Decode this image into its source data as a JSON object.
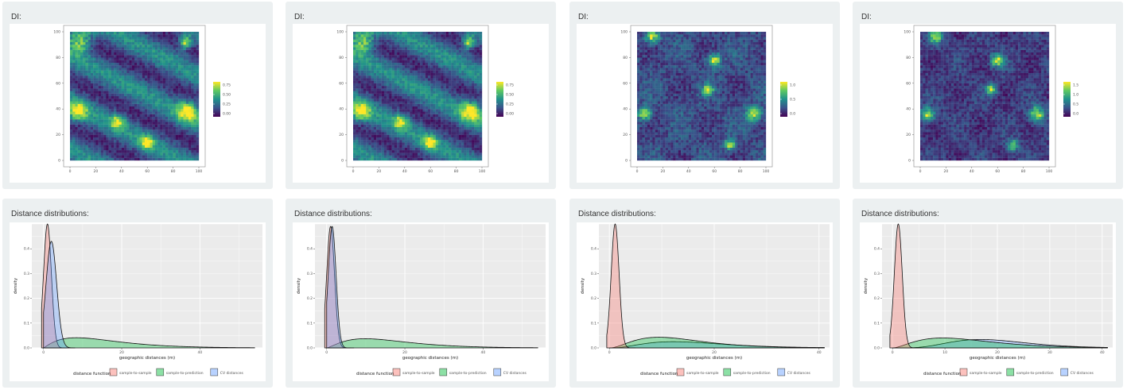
{
  "colors": {
    "panel_bg": "#ecf0f1",
    "sample_to_sample": "#f8766d",
    "sample_to_prediction": "#00ba38",
    "cv_distances": "#619cff",
    "viridis": [
      "#440154",
      "#3b528b",
      "#21918c",
      "#5ec962",
      "#fde725"
    ]
  },
  "di_panels": [
    {
      "title": "DI:",
      "legend_ticks": [
        "0.75",
        "0.50",
        "0.25",
        "0.00"
      ],
      "chart_data": {
        "type": "heatmap",
        "xlim": [
          0,
          100
        ],
        "ylim": [
          0,
          100
        ],
        "x_ticks": [
          "0",
          "20",
          "40",
          "60",
          "80",
          "100"
        ],
        "y_ticks": [
          "0",
          "20",
          "40",
          "60",
          "80",
          "100"
        ],
        "legend_range": [
          0,
          0.9
        ],
        "pattern": "diagonal-bands"
      }
    },
    {
      "title": "DI:",
      "legend_ticks": [
        "0.75",
        "0.50",
        "0.25",
        "0.00"
      ],
      "chart_data": {
        "type": "heatmap",
        "xlim": [
          0,
          100
        ],
        "ylim": [
          0,
          100
        ],
        "x_ticks": [
          "0",
          "20",
          "40",
          "60",
          "80",
          "100"
        ],
        "y_ticks": [
          "0",
          "20",
          "40",
          "60",
          "80",
          "100"
        ],
        "legend_range": [
          0,
          0.9
        ],
        "pattern": "diagonal-bands"
      }
    },
    {
      "title": "DI:",
      "legend_ticks": [
        "1.0",
        "0.5",
        "0.0"
      ],
      "chart_data": {
        "type": "heatmap",
        "xlim": [
          0,
          100
        ],
        "ylim": [
          0,
          100
        ],
        "x_ticks": [
          "0",
          "20",
          "40",
          "60",
          "80",
          "100"
        ],
        "y_ticks": [
          "0",
          "20",
          "40",
          "60",
          "80",
          "100"
        ],
        "legend_range": [
          0,
          1.3
        ],
        "pattern": "noise"
      }
    },
    {
      "title": "DI:",
      "legend_ticks": [
        "1.5",
        "1.0",
        "0.5",
        "0.0"
      ],
      "chart_data": {
        "type": "heatmap",
        "xlim": [
          0,
          100
        ],
        "ylim": [
          0,
          100
        ],
        "x_ticks": [
          "0",
          "20",
          "40",
          "60",
          "80",
          "100"
        ],
        "y_ticks": [
          "0",
          "20",
          "40",
          "60",
          "80",
          "100"
        ],
        "legend_range": [
          0,
          1.7
        ],
        "pattern": "noise-dark"
      }
    }
  ],
  "dist_panels": [
    {
      "title": "Distance distributions:",
      "legend_title": "distance function",
      "legend_items": [
        "sample-to-sample",
        "sample-to-prediction",
        "CV distances"
      ],
      "chart_data": {
        "type": "area",
        "xlabel": "geographic distances (m)",
        "ylabel": "density",
        "xlim": [
          -3,
          56
        ],
        "ylim": [
          0,
          0.5
        ],
        "x_ticks": [
          0,
          20,
          40
        ],
        "y_ticks": [
          0.0,
          0.1,
          0.2,
          0.3,
          0.4
        ],
        "series": [
          {
            "name": "sample-to-prediction",
            "color_key": "sample_to_prediction",
            "dist": {
              "kind": "gamma",
              "mean": 16,
              "sd": 11,
              "amp": 0.041
            },
            "range": [
              0,
              54
            ]
          },
          {
            "name": "sample-to-sample",
            "color_key": "sample_to_sample",
            "dist": {
              "kind": "normal",
              "mean": 1.0,
              "sd": 1.0,
              "amp": 0.5
            },
            "range": [
              -0.5,
              6
            ]
          },
          {
            "name": "CV distances",
            "color_key": "cv_distances",
            "dist": {
              "kind": "normal",
              "mean": 2.0,
              "sd": 1.35,
              "amp": 0.43
            },
            "range": [
              0,
              8
            ]
          }
        ]
      }
    },
    {
      "title": "Distance distributions:",
      "legend_title": "distance function",
      "legend_items": [
        "sample-to-sample",
        "sample-to-prediction",
        "CV distances"
      ],
      "chart_data": {
        "type": "area",
        "xlabel": "geographic distances (m)",
        "ylabel": "density",
        "xlim": [
          -3,
          56
        ],
        "ylim": [
          0,
          0.5
        ],
        "x_ticks": [
          0,
          20,
          40
        ],
        "y_ticks": [
          0.0,
          0.1,
          0.2,
          0.3,
          0.4
        ],
        "series": [
          {
            "name": "sample-to-prediction",
            "color_key": "sample_to_prediction",
            "dist": {
              "kind": "gamma",
              "mean": 17,
              "sd": 11,
              "amp": 0.037
            },
            "range": [
              0,
              54
            ]
          },
          {
            "name": "sample-to-sample",
            "color_key": "sample_to_sample",
            "dist": {
              "kind": "normal",
              "mean": 1.0,
              "sd": 1.0,
              "amp": 0.49
            },
            "range": [
              -0.5,
              6
            ]
          },
          {
            "name": "CV distances",
            "color_key": "cv_distances",
            "dist": {
              "kind": "normal",
              "mean": 1.4,
              "sd": 1.0,
              "amp": 0.49
            },
            "range": [
              0,
              7
            ]
          }
        ]
      }
    },
    {
      "title": "Distance distributions:",
      "legend_title": "distance function",
      "legend_items": [
        "sample-to-sample",
        "sample-to-prediction",
        "CV distances"
      ],
      "chart_data": {
        "type": "area",
        "xlabel": "geographic distances (m)",
        "ylabel": "density",
        "xlim": [
          -2,
          42
        ],
        "ylim": [
          0,
          0.5
        ],
        "x_ticks": [
          0,
          20,
          40
        ],
        "y_ticks": [
          0.0,
          0.1,
          0.2,
          0.3,
          0.4
        ],
        "series": [
          {
            "name": "CV distances",
            "color_key": "cv_distances",
            "dist": {
              "kind": "gamma",
              "mean": 17,
              "sd": 9,
              "amp": 0.025
            },
            "range": [
              0,
              41
            ]
          },
          {
            "name": "sample-to-prediction",
            "color_key": "sample_to_prediction",
            "dist": {
              "kind": "gamma",
              "mean": 14,
              "sd": 8,
              "amp": 0.043
            },
            "range": [
              0,
              41
            ]
          },
          {
            "name": "sample-to-sample",
            "color_key": "sample_to_sample",
            "dist": {
              "kind": "normal",
              "mean": 1.1,
              "sd": 0.75,
              "amp": 0.5
            },
            "range": [
              -0.5,
              5
            ]
          }
        ]
      }
    },
    {
      "title": "Distance distributions:",
      "legend_title": "distance function",
      "legend_items": [
        "sample-to-sample",
        "sample-to-prediction",
        "CV distances"
      ],
      "chart_data": {
        "type": "area",
        "xlabel": "geographic distances (m)",
        "ylabel": "density",
        "xlim": [
          -2,
          42
        ],
        "ylim": [
          0,
          0.5
        ],
        "x_ticks": [
          0,
          10,
          20,
          30,
          40
        ],
        "y_ticks": [
          0.0,
          0.1,
          0.2,
          0.3,
          0.4
        ],
        "series": [
          {
            "name": "CV distances",
            "color_key": "cv_distances",
            "dist": {
              "kind": "gamma",
              "mean": 20,
              "sd": 8,
              "amp": 0.034
            },
            "range": [
              0,
              41
            ]
          },
          {
            "name": "sample-to-prediction",
            "color_key": "sample_to_prediction",
            "dist": {
              "kind": "gamma",
              "mean": 15,
              "sd": 9,
              "amp": 0.04
            },
            "range": [
              0,
              41
            ]
          },
          {
            "name": "sample-to-sample",
            "color_key": "sample_to_sample",
            "dist": {
              "kind": "normal",
              "mean": 1.1,
              "sd": 0.75,
              "amp": 0.5
            },
            "range": [
              -0.5,
              5
            ]
          }
        ]
      }
    }
  ]
}
